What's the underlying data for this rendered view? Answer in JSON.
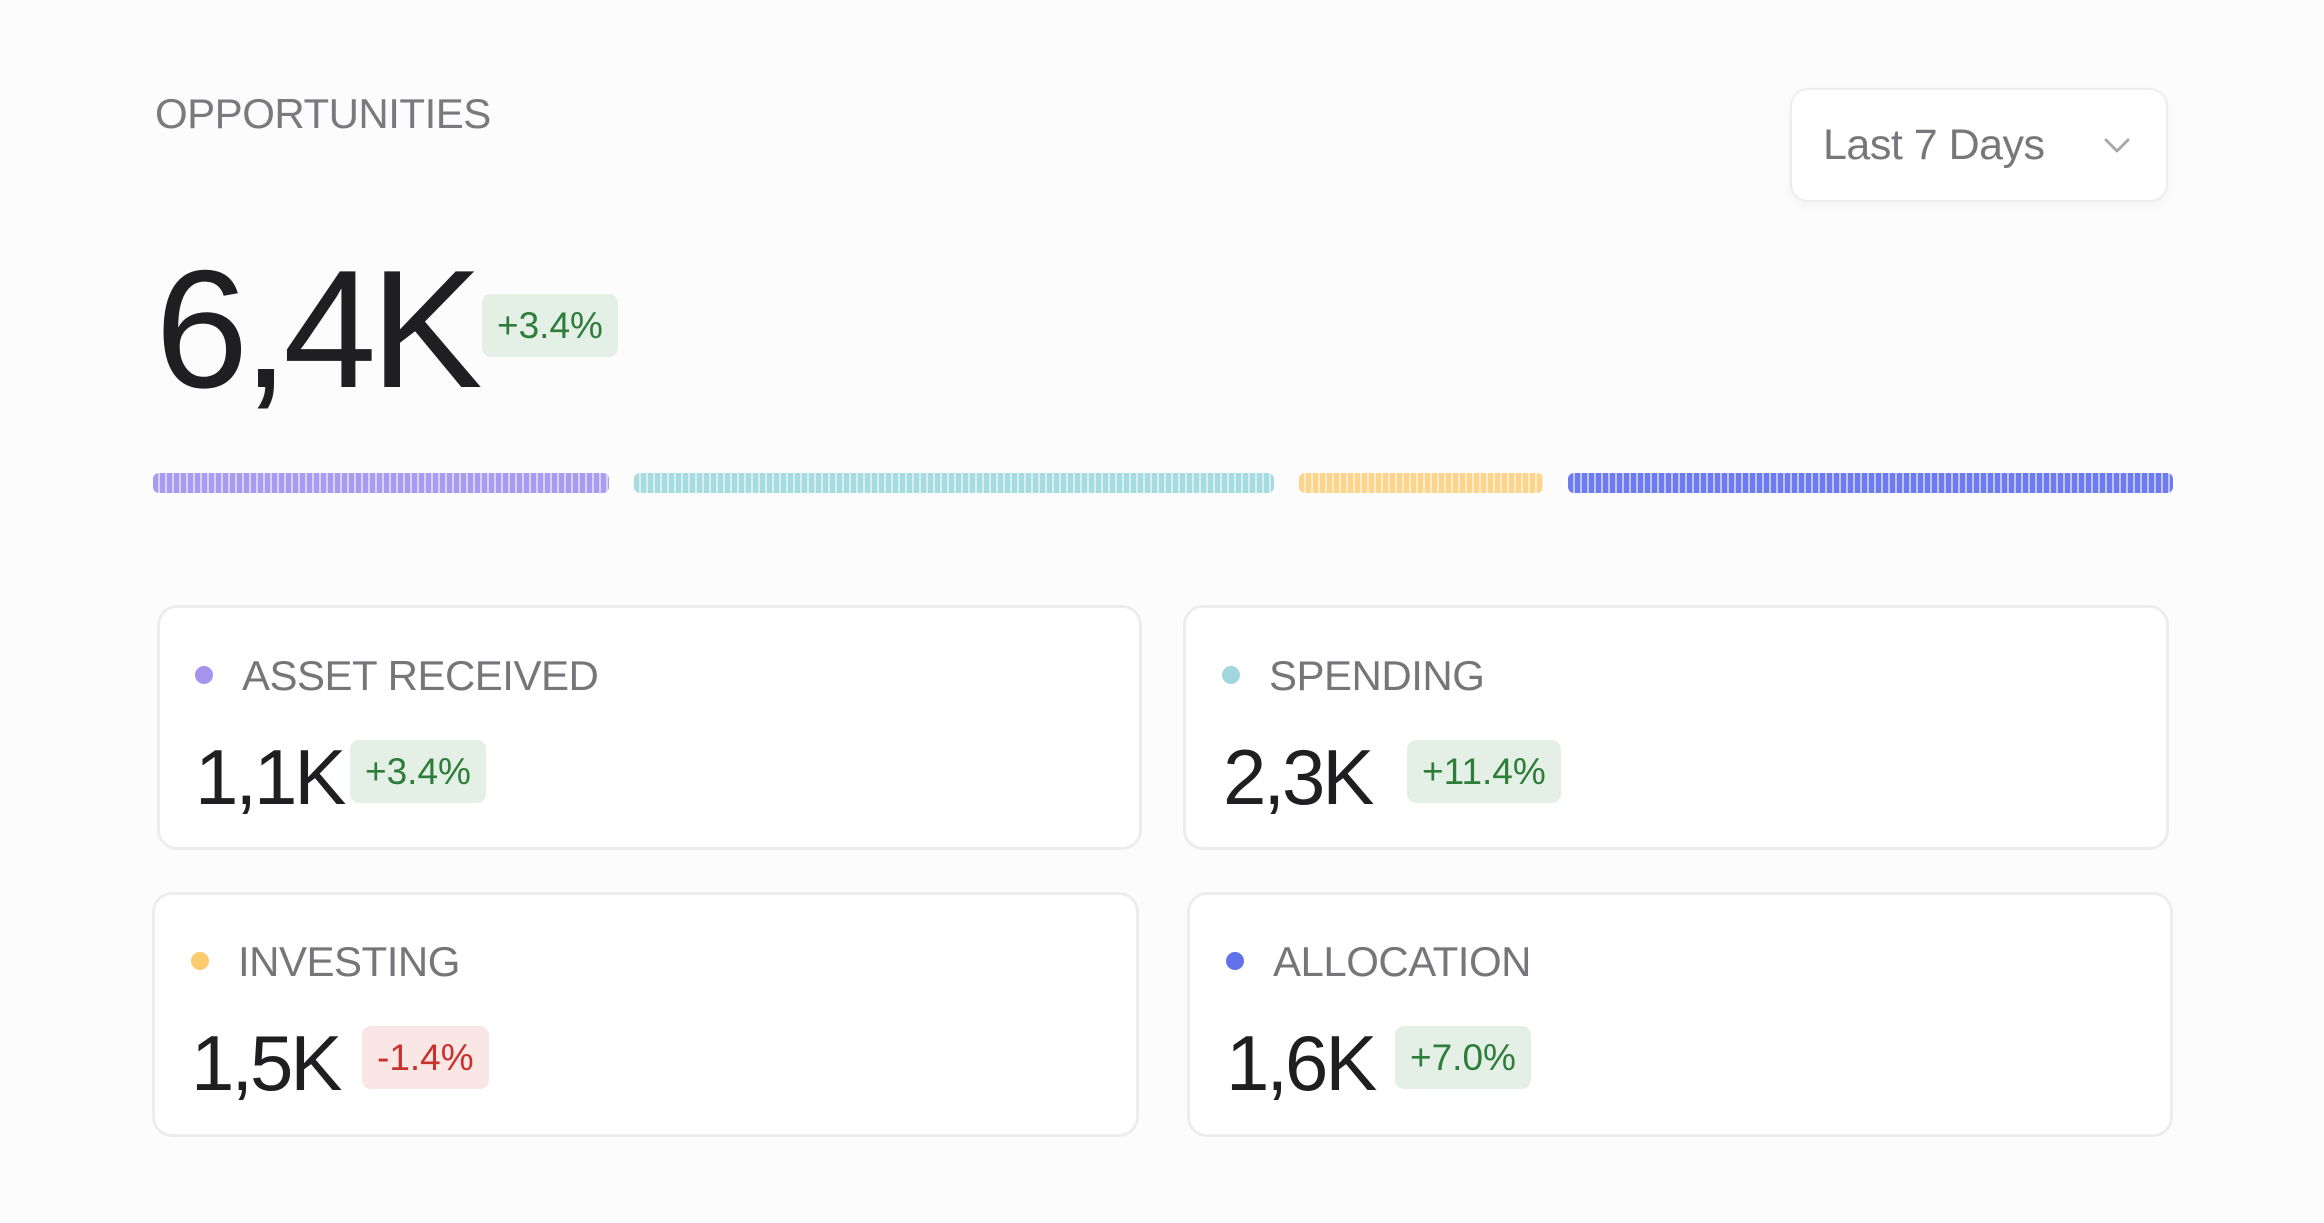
{
  "header": {
    "title": "OPPORTUNITIES",
    "range_selector": {
      "selected": "Last 7 Days",
      "icon": "chevron-down-icon"
    }
  },
  "summary": {
    "total": "6,4K",
    "change": "+3.4%",
    "change_trend": "positive"
  },
  "distribution": [
    {
      "name": "ASSET RECEIVED",
      "color": "#a99cf0",
      "share": 0.226
    },
    {
      "name": "SPENDING",
      "color": "#a6dbe0",
      "share": 0.317
    },
    {
      "name": "INVESTING",
      "color": "#fdd48c",
      "share": 0.121
    },
    {
      "name": "ALLOCATION",
      "color": "#6d7bee",
      "share": 0.3
    }
  ],
  "cards": [
    {
      "label": "ASSET RECEIVED",
      "value": "1,1K",
      "change": "+3.4%",
      "trend": "positive",
      "dot_color": "#a594ee"
    },
    {
      "label": "SPENDING",
      "value": "2,3K",
      "change": "+11.4%",
      "trend": "positive",
      "dot_color": "#a2d6de"
    },
    {
      "label": "INVESTING",
      "value": "1,5K",
      "change": "-1.4%",
      "trend": "negative",
      "dot_color": "#fbcb6e"
    },
    {
      "label": "ALLOCATION",
      "value": "1,6K",
      "change": "+7.0%",
      "trend": "positive",
      "dot_color": "#6272ea"
    }
  ]
}
